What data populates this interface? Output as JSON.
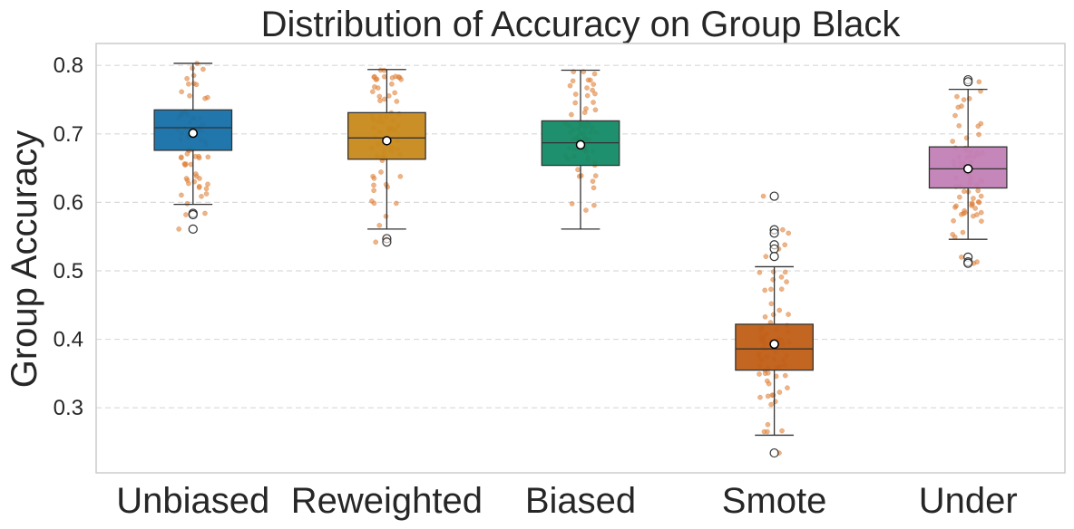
{
  "chart_data": {
    "type": "box",
    "title": "Distribution of Accuracy on Group Black",
    "xlabel": "",
    "ylabel": "Group Accuracy",
    "ylim": [
      0.205,
      0.832
    ],
    "yticks": [
      0.3,
      0.4,
      0.5,
      0.6,
      0.7,
      0.8
    ],
    "ytick_labels": [
      "0.3",
      "0.4",
      "0.5",
      "0.6",
      "0.7",
      "0.8"
    ],
    "grid": "horizontal-dashed",
    "categories": [
      "Unbiased",
      "Reweighted",
      "Biased",
      "Smote",
      "Under"
    ],
    "colors": [
      "#1f77b4",
      "#c98a1e",
      "#158a64",
      "#c25e17",
      "#c77fb4"
    ],
    "box_fill": [
      "#1570a8",
      "#c8891b",
      "#138a66",
      "#c05e16",
      "#c27fb6"
    ],
    "jitter_color": "#e0823a",
    "boxes": [
      {
        "name": "Unbiased",
        "q1": 0.676,
        "median": 0.709,
        "q3": 0.735,
        "whisker_low": 0.597,
        "whisker_high": 0.803,
        "mean": 0.701,
        "outliers": [
          0.584,
          0.582,
          0.561
        ]
      },
      {
        "name": "Reweighted",
        "q1": 0.663,
        "median": 0.694,
        "q3": 0.731,
        "whisker_low": 0.561,
        "whisker_high": 0.794,
        "mean": 0.69,
        "outliers": [
          0.547,
          0.542
        ]
      },
      {
        "name": "Biased",
        "q1": 0.654,
        "median": 0.687,
        "q3": 0.719,
        "whisker_low": 0.561,
        "whisker_high": 0.793,
        "mean": 0.684,
        "outliers": []
      },
      {
        "name": "Smote",
        "q1": 0.355,
        "median": 0.386,
        "q3": 0.422,
        "whisker_low": 0.26,
        "whisker_high": 0.506,
        "mean": 0.393,
        "outliers": [
          0.609,
          0.56,
          0.555,
          0.538,
          0.532,
          0.521,
          0.234
        ]
      },
      {
        "name": "Under",
        "q1": 0.621,
        "median": 0.649,
        "q3": 0.681,
        "whisker_low": 0.546,
        "whisker_high": 0.765,
        "mean": 0.649,
        "outliers": [
          0.779,
          0.776,
          0.52,
          0.513,
          0.511
        ]
      }
    ]
  }
}
